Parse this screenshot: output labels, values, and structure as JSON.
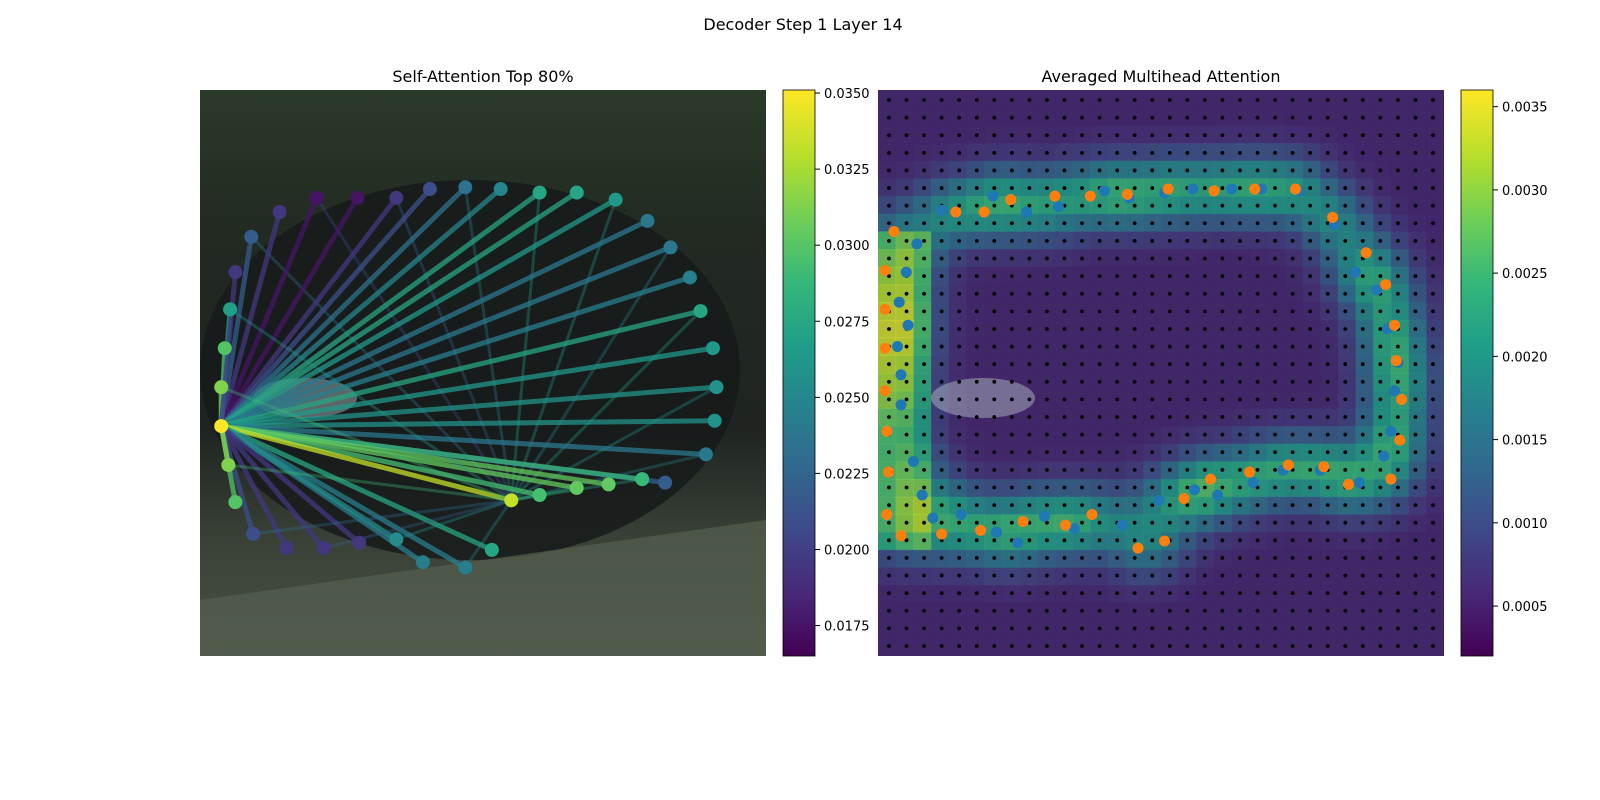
{
  "figure": {
    "suptitle": "Decoder Step 1 Layer 14"
  },
  "colors": {
    "viridis": [
      "#440154",
      "#482878",
      "#3e4989",
      "#31688e",
      "#26828e",
      "#1f9e89",
      "#35b779",
      "#6ece58",
      "#b5de2b",
      "#fde725"
    ],
    "blue_point": "#1f77b4",
    "orange_point": "#ff7f0e",
    "grid_dot": "#000000"
  },
  "chart_data": [
    {
      "type": "scatter",
      "title": "Self-Attention Top 80%",
      "background": "photo of a dark car on a street",
      "xlim": [
        0,
        32
      ],
      "ylim": [
        32,
        0
      ],
      "colorbar": {
        "range": [
          0.0165,
          0.0351
        ],
        "ticks": [
          "0.0175",
          "0.0200",
          "0.0225",
          "0.0250",
          "0.0275",
          "0.0300",
          "0.0325",
          "0.0350"
        ],
        "tick_values": [
          0.0175,
          0.02,
          0.0225,
          0.025,
          0.0275,
          0.03,
          0.0325,
          0.035
        ]
      },
      "points": [
        {
          "x": 2.9,
          "y": 8.3,
          "v": 0.022
        },
        {
          "x": 4.5,
          "y": 6.9,
          "v": 0.0195
        },
        {
          "x": 6.6,
          "y": 6.1,
          "v": 0.0175
        },
        {
          "x": 8.9,
          "y": 6.1,
          "v": 0.0175
        },
        {
          "x": 11.1,
          "y": 6.1,
          "v": 0.0195
        },
        {
          "x": 13.0,
          "y": 5.6,
          "v": 0.021
        },
        {
          "x": 15.0,
          "y": 5.5,
          "v": 0.0235
        },
        {
          "x": 17.0,
          "y": 5.6,
          "v": 0.025
        },
        {
          "x": 19.2,
          "y": 5.8,
          "v": 0.0275
        },
        {
          "x": 21.3,
          "y": 5.8,
          "v": 0.0275
        },
        {
          "x": 23.5,
          "y": 6.2,
          "v": 0.0265
        },
        {
          "x": 25.3,
          "y": 7.4,
          "v": 0.024
        },
        {
          "x": 26.6,
          "y": 8.9,
          "v": 0.024
        },
        {
          "x": 27.7,
          "y": 10.6,
          "v": 0.0245
        },
        {
          "x": 28.3,
          "y": 12.5,
          "v": 0.0275
        },
        {
          "x": 29.0,
          "y": 14.6,
          "v": 0.0265
        },
        {
          "x": 29.2,
          "y": 16.8,
          "v": 0.026
        },
        {
          "x": 29.1,
          "y": 18.7,
          "v": 0.026
        },
        {
          "x": 28.6,
          "y": 20.6,
          "v": 0.024
        },
        {
          "x": 26.3,
          "y": 22.2,
          "v": 0.022
        },
        {
          "x": 25.0,
          "y": 22.0,
          "v": 0.029
        },
        {
          "x": 23.1,
          "y": 22.3,
          "v": 0.0305
        },
        {
          "x": 21.3,
          "y": 22.5,
          "v": 0.0305
        },
        {
          "x": 19.2,
          "y": 22.9,
          "v": 0.0295
        },
        {
          "x": 17.6,
          "y": 23.2,
          "v": 0.0335
        },
        {
          "x": 16.5,
          "y": 26.0,
          "v": 0.0275
        },
        {
          "x": 15.0,
          "y": 27.0,
          "v": 0.0245
        },
        {
          "x": 12.6,
          "y": 26.7,
          "v": 0.0245
        },
        {
          "x": 11.1,
          "y": 25.4,
          "v": 0.0255
        },
        {
          "x": 9.0,
          "y": 25.6,
          "v": 0.0195
        },
        {
          "x": 7.0,
          "y": 25.9,
          "v": 0.0195
        },
        {
          "x": 4.9,
          "y": 25.9,
          "v": 0.0195
        },
        {
          "x": 3.0,
          "y": 25.1,
          "v": 0.021
        },
        {
          "x": 2.0,
          "y": 23.3,
          "v": 0.03
        },
        {
          "x": 1.6,
          "y": 21.2,
          "v": 0.0315
        },
        {
          "x": 1.2,
          "y": 19.0,
          "v": 0.035
        },
        {
          "x": 1.2,
          "y": 16.8,
          "v": 0.0315
        },
        {
          "x": 1.4,
          "y": 14.6,
          "v": 0.03
        },
        {
          "x": 1.7,
          "y": 12.4,
          "v": 0.027
        },
        {
          "x": 2.0,
          "y": 10.3,
          "v": 0.0195
        }
      ],
      "focus_index": 35
    },
    {
      "type": "heatmap",
      "title": "Averaged Multihead Attention",
      "background": "photo of a dark car on a street",
      "xlim": [
        0,
        32
      ],
      "ylim": [
        32,
        0
      ],
      "grid_dots": 32,
      "colorbar": {
        "range": [
          0.0002,
          0.0036
        ],
        "ticks": [
          "0.0005",
          "0.0010",
          "0.0015",
          "0.0020",
          "0.0025",
          "0.0030",
          "0.0035"
        ],
        "tick_values": [
          0.0005,
          0.001,
          0.0015,
          0.002,
          0.0025,
          0.003,
          0.0035
        ]
      },
      "orange_points": [
        [
          0.4,
          10.2
        ],
        [
          0.9,
          8.0
        ],
        [
          0.4,
          12.4
        ],
        [
          0.4,
          14.6
        ],
        [
          0.4,
          17.0
        ],
        [
          0.5,
          19.3
        ],
        [
          0.6,
          21.6
        ],
        [
          0.5,
          24.0
        ],
        [
          1.3,
          25.2
        ],
        [
          3.6,
          25.1
        ],
        [
          5.8,
          24.9
        ],
        [
          8.2,
          24.4
        ],
        [
          10.6,
          24.6
        ],
        [
          12.1,
          24.0
        ],
        [
          14.7,
          25.9
        ],
        [
          16.2,
          25.5
        ],
        [
          17.3,
          23.1
        ],
        [
          18.8,
          22.0
        ],
        [
          21.0,
          21.6
        ],
        [
          23.2,
          21.2
        ],
        [
          25.2,
          21.3
        ],
        [
          26.6,
          22.3
        ],
        [
          29.0,
          22.0
        ],
        [
          29.5,
          19.8
        ],
        [
          29.6,
          17.5
        ],
        [
          29.3,
          15.3
        ],
        [
          29.2,
          13.3
        ],
        [
          28.7,
          11.0
        ],
        [
          27.6,
          9.2
        ],
        [
          25.7,
          7.2
        ],
        [
          23.6,
          5.6
        ],
        [
          21.3,
          5.6
        ],
        [
          19.0,
          5.7
        ],
        [
          16.4,
          5.6
        ],
        [
          14.1,
          5.9
        ],
        [
          12.0,
          6.0
        ],
        [
          10.0,
          6.0
        ],
        [
          7.5,
          6.2
        ],
        [
          6.0,
          6.9
        ],
        [
          4.4,
          6.9
        ]
      ],
      "blue_points": [
        [
          1.7,
          13.3
        ],
        [
          1.1,
          14.5
        ],
        [
          1.3,
          16.1
        ],
        [
          1.3,
          17.8
        ],
        [
          2.0,
          21.0
        ],
        [
          2.5,
          22.9
        ],
        [
          3.1,
          24.2
        ],
        [
          4.7,
          24.0
        ],
        [
          6.7,
          25.0
        ],
        [
          7.9,
          25.6
        ],
        [
          9.4,
          24.1
        ],
        [
          11.1,
          24.8
        ],
        [
          13.8,
          24.6
        ],
        [
          15.9,
          23.2
        ],
        [
          17.9,
          22.6
        ],
        [
          19.2,
          22.9
        ],
        [
          21.2,
          22.2
        ],
        [
          22.9,
          21.5
        ],
        [
          25.0,
          21.5
        ],
        [
          27.2,
          22.2
        ],
        [
          28.6,
          20.7
        ],
        [
          29.0,
          19.3
        ],
        [
          29.2,
          17.0
        ],
        [
          29.4,
          15.4
        ],
        [
          28.8,
          13.5
        ],
        [
          28.2,
          11.3
        ],
        [
          27.0,
          10.3
        ],
        [
          25.8,
          7.6
        ],
        [
          23.8,
          5.7
        ],
        [
          21.7,
          5.6
        ],
        [
          20.0,
          5.6
        ],
        [
          17.8,
          5.6
        ],
        [
          16.2,
          5.8
        ],
        [
          14.2,
          6.1
        ],
        [
          12.8,
          5.7
        ],
        [
          10.2,
          6.6
        ],
        [
          8.4,
          6.9
        ],
        [
          6.5,
          6.0
        ],
        [
          3.6,
          6.8
        ],
        [
          2.2,
          8.7
        ],
        [
          1.6,
          10.3
        ],
        [
          1.2,
          12.0
        ]
      ]
    }
  ]
}
